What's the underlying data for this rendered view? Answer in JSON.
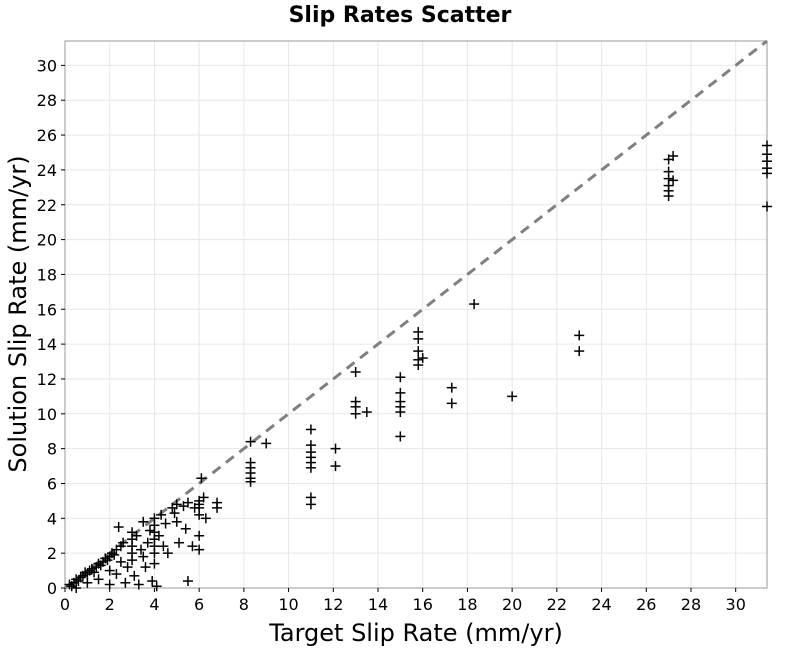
{
  "chart_data": {
    "type": "scatter",
    "title": "Slip Rates Scatter",
    "xlabel": "Target Slip Rate (mm/yr)",
    "ylabel": "Solution Slip Rate (mm/yr)",
    "xlim": [
      0,
      31.4
    ],
    "ylim": [
      0,
      31.4
    ],
    "xticks": [
      "0",
      "2",
      "4",
      "6",
      "8",
      "10",
      "12",
      "14",
      "16",
      "18",
      "20",
      "22",
      "24",
      "26",
      "28",
      "30"
    ],
    "yticks": [
      "0",
      "2",
      "4",
      "6",
      "8",
      "10",
      "12",
      "14",
      "16",
      "18",
      "20",
      "22",
      "24",
      "26",
      "28",
      "30"
    ],
    "grid": true,
    "marker": "plus",
    "marker_color": "#000000",
    "reference_line": {
      "style": "dashed",
      "color": "#808080",
      "from": [
        0,
        0
      ],
      "to": [
        31.4,
        31.4
      ]
    },
    "series": [
      {
        "points": [
          [
            0.2,
            0.2
          ],
          [
            0.3,
            0.1
          ],
          [
            0.4,
            0.3
          ],
          [
            0.5,
            0.5
          ],
          [
            0.5,
            0.0
          ],
          [
            0.6,
            0.4
          ],
          [
            0.7,
            0.6
          ],
          [
            0.8,
            0.7
          ],
          [
            0.9,
            0.9
          ],
          [
            1.0,
            0.8
          ],
          [
            1.0,
            0.3
          ],
          [
            1.1,
            1.0
          ],
          [
            1.2,
            1.1
          ],
          [
            1.3,
            0.9
          ],
          [
            1.4,
            1.2
          ],
          [
            1.5,
            1.4
          ],
          [
            1.5,
            0.5
          ],
          [
            1.6,
            1.3
          ],
          [
            1.7,
            1.5
          ],
          [
            1.8,
            1.7
          ],
          [
            1.9,
            1.6
          ],
          [
            2.0,
            1.8
          ],
          [
            2.0,
            1.0
          ],
          [
            2.0,
            0.2
          ],
          [
            2.1,
            2.0
          ],
          [
            2.2,
            1.9
          ],
          [
            2.3,
            2.2
          ],
          [
            2.3,
            0.8
          ],
          [
            2.4,
            3.5
          ],
          [
            2.5,
            2.4
          ],
          [
            2.5,
            1.5
          ],
          [
            2.6,
            2.6
          ],
          [
            2.7,
            0.3
          ],
          [
            2.8,
            1.2
          ],
          [
            3.0,
            3.2
          ],
          [
            3.0,
            2.8
          ],
          [
            3.0,
            2.4
          ],
          [
            3.0,
            2.0
          ],
          [
            3.0,
            1.6
          ],
          [
            3.1,
            0.7
          ],
          [
            3.2,
            3.0
          ],
          [
            3.3,
            0.2
          ],
          [
            3.4,
            2.2
          ],
          [
            3.5,
            3.8
          ],
          [
            3.5,
            1.8
          ],
          [
            3.6,
            1.2
          ],
          [
            3.7,
            2.6
          ],
          [
            3.8,
            3.3
          ],
          [
            3.9,
            0.4
          ],
          [
            4.0,
            4.0
          ],
          [
            4.0,
            3.6
          ],
          [
            4.0,
            3.2
          ],
          [
            4.0,
            2.8
          ],
          [
            4.0,
            2.4
          ],
          [
            4.0,
            2.0
          ],
          [
            4.0,
            1.4
          ],
          [
            4.1,
            0.1
          ],
          [
            4.2,
            3.0
          ],
          [
            4.3,
            4.2
          ],
          [
            4.4,
            2.4
          ],
          [
            4.5,
            3.7
          ],
          [
            4.6,
            2.0
          ],
          [
            4.8,
            4.6
          ],
          [
            4.9,
            4.3
          ],
          [
            5.0,
            4.8
          ],
          [
            5.0,
            3.8
          ],
          [
            5.1,
            2.6
          ],
          [
            5.3,
            4.7
          ],
          [
            5.4,
            3.4
          ],
          [
            5.5,
            0.4
          ],
          [
            5.5,
            4.9
          ],
          [
            5.7,
            2.4
          ],
          [
            5.8,
            4.6
          ],
          [
            6.0,
            5.0
          ],
          [
            6.0,
            4.8
          ],
          [
            6.0,
            4.6
          ],
          [
            6.0,
            4.2
          ],
          [
            6.0,
            3.0
          ],
          [
            6.0,
            2.2
          ],
          [
            6.1,
            6.3
          ],
          [
            6.2,
            5.2
          ],
          [
            6.3,
            4.0
          ],
          [
            6.8,
            4.9
          ],
          [
            6.8,
            4.6
          ],
          [
            8.3,
            8.4
          ],
          [
            8.3,
            7.2
          ],
          [
            8.3,
            6.9
          ],
          [
            8.3,
            6.6
          ],
          [
            8.3,
            6.3
          ],
          [
            8.3,
            6.1
          ],
          [
            9.0,
            8.3
          ],
          [
            11.0,
            9.1
          ],
          [
            11.0,
            8.2
          ],
          [
            11.0,
            7.8
          ],
          [
            11.0,
            7.5
          ],
          [
            11.0,
            7.2
          ],
          [
            11.0,
            6.9
          ],
          [
            11.0,
            5.2
          ],
          [
            11.0,
            4.8
          ],
          [
            12.1,
            8.0
          ],
          [
            12.1,
            7.0
          ],
          [
            13.0,
            12.4
          ],
          [
            13.0,
            10.7
          ],
          [
            13.0,
            10.4
          ],
          [
            13.0,
            10.0
          ],
          [
            13.5,
            10.1
          ],
          [
            15.0,
            12.1
          ],
          [
            15.0,
            11.2
          ],
          [
            15.0,
            10.7
          ],
          [
            15.0,
            10.4
          ],
          [
            15.0,
            10.1
          ],
          [
            15.0,
            8.7
          ],
          [
            15.8,
            14.7
          ],
          [
            15.8,
            14.3
          ],
          [
            15.8,
            13.6
          ],
          [
            15.8,
            13.1
          ],
          [
            15.8,
            12.8
          ],
          [
            16.0,
            13.2
          ],
          [
            17.3,
            11.5
          ],
          [
            17.3,
            10.6
          ],
          [
            18.3,
            16.3
          ],
          [
            20.0,
            11.0
          ],
          [
            23.0,
            14.5
          ],
          [
            23.0,
            13.6
          ],
          [
            27.0,
            24.6
          ],
          [
            27.0,
            23.9
          ],
          [
            27.0,
            23.5
          ],
          [
            27.0,
            23.1
          ],
          [
            27.0,
            22.8
          ],
          [
            27.0,
            22.5
          ],
          [
            27.2,
            24.8
          ],
          [
            27.2,
            23.4
          ],
          [
            31.4,
            25.4
          ],
          [
            31.4,
            24.9
          ],
          [
            31.4,
            24.5
          ],
          [
            31.4,
            24.1
          ],
          [
            31.4,
            23.8
          ],
          [
            31.4,
            21.9
          ]
        ]
      }
    ]
  }
}
